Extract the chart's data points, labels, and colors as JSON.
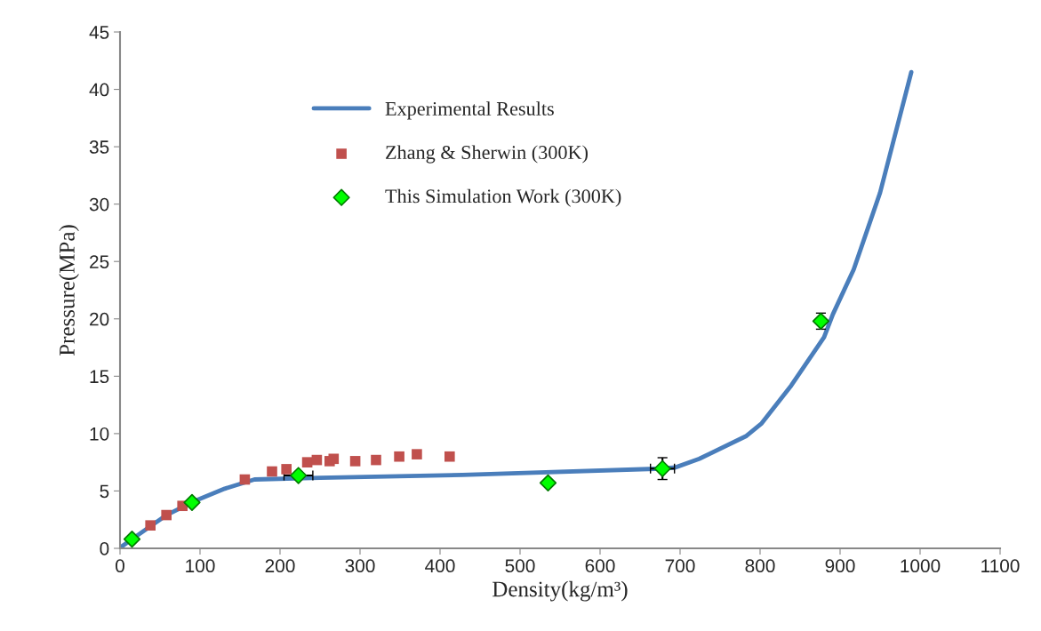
{
  "chart_data": {
    "type": "line",
    "xlabel": "Density(kg/m³)",
    "ylabel": "Pressure(MPa)",
    "xlim": [
      0,
      1100
    ],
    "xticks": [
      0,
      100,
      200,
      300,
      400,
      500,
      600,
      700,
      800,
      900,
      1000,
      1100
    ],
    "ylim": [
      0,
      45
    ],
    "yticks": [
      0,
      5,
      10,
      15,
      20,
      25,
      30,
      35,
      40,
      45
    ],
    "grid": false,
    "legend": "top left",
    "series": [
      {
        "name": "Experimental Results",
        "color": "#4a7ebb",
        "marker": "none",
        "line_style": "solid",
        "x": [
          2,
          17,
          57,
          94,
          131,
          168,
          250,
          428,
          472,
          678,
          694,
          724,
          783,
          802,
          839,
          880,
          891,
          917,
          950,
          989
        ],
        "values": [
          0.15,
          0.9,
          2.85,
          4.15,
          5.2,
          6.0,
          6.15,
          6.4,
          6.5,
          6.95,
          7.05,
          7.8,
          9.8,
          10.9,
          14.2,
          18.4,
          20.4,
          24.3,
          31.0,
          41.5
        ]
      },
      {
        "name": "Zhang & Sherwin (300K)",
        "type": "scatter",
        "color": "#c0504d",
        "marker": "square",
        "x": [
          38,
          58,
          78,
          156,
          190,
          208,
          234,
          246,
          262,
          267,
          294,
          320,
          349,
          371,
          412
        ],
        "values": [
          2.0,
          2.9,
          3.7,
          6.0,
          6.7,
          6.9,
          7.5,
          7.7,
          7.6,
          7.8,
          7.6,
          7.7,
          8.0,
          8.2,
          8.0
        ]
      },
      {
        "name": "This Simulation Work (300K)",
        "type": "scatter",
        "color": "#00ff00",
        "marker": "diamond",
        "x": [
          15,
          90,
          223,
          535,
          678,
          876
        ],
        "values": [
          0.8,
          4.0,
          6.35,
          5.7,
          6.95,
          19.8
        ],
        "errors": [
          null,
          null,
          null,
          null,
          0.95,
          0.7
        ],
        "xerrors": [
          null,
          null,
          18,
          null,
          15,
          null
        ]
      }
    ]
  }
}
